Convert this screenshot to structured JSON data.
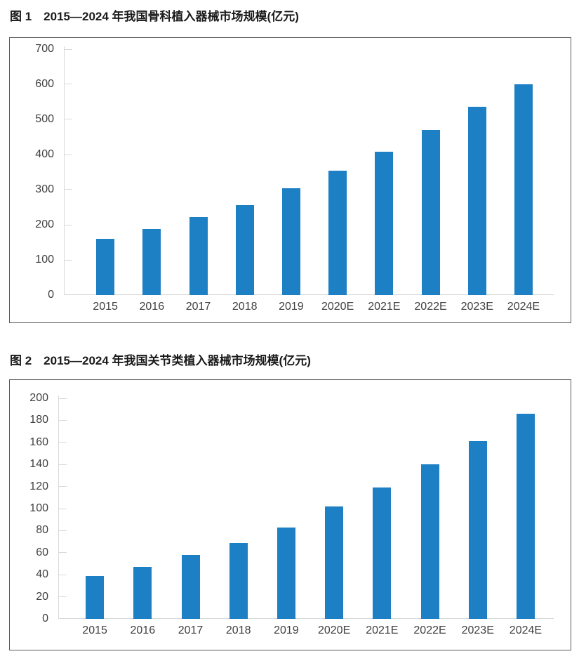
{
  "colors": {
    "bar": "#1d7fc4",
    "axis_line": "#d9d9d9",
    "tick_label": "#404040",
    "box_border": "#5a5a5a",
    "title_text": "#1a1a1a"
  },
  "chart_data": [
    {
      "type": "bar",
      "title": "图 1　2015—2024 年我国骨科植入器械市场规模(亿元)",
      "categories": [
        "2015",
        "2016",
        "2017",
        "2018",
        "2019",
        "2020E",
        "2021E",
        "2022E",
        "2023E",
        "2024E"
      ],
      "values": [
        160,
        188,
        222,
        257,
        304,
        355,
        408,
        470,
        537,
        600
      ],
      "xlabel": "",
      "ylabel": "",
      "ylim": [
        0,
        700
      ],
      "ytick_step": 100,
      "ytick_labels": [
        "0",
        "100",
        "200",
        "300",
        "400",
        "500",
        "600",
        "700"
      ],
      "grid": "off",
      "legend": "none",
      "bar_color": "#1d7fc4"
    },
    {
      "type": "bar",
      "title": "图 2　2015—2024 年我国关节类植入器械市场规模(亿元)",
      "categories": [
        "2015",
        "2016",
        "2017",
        "2018",
        "2019",
        "2020E",
        "2021E",
        "2022E",
        "2023E",
        "2024E"
      ],
      "values": [
        39,
        47,
        58,
        69,
        83,
        102,
        119,
        140,
        161,
        186
      ],
      "xlabel": "",
      "ylabel": "",
      "ylim": [
        0,
        200
      ],
      "ytick_step": 20,
      "ytick_labels": [
        "0",
        "20",
        "40",
        "60",
        "80",
        "100",
        "120",
        "140",
        "160",
        "180",
        "200"
      ],
      "grid": "off",
      "legend": "none",
      "bar_color": "#1d7fc4"
    }
  ]
}
